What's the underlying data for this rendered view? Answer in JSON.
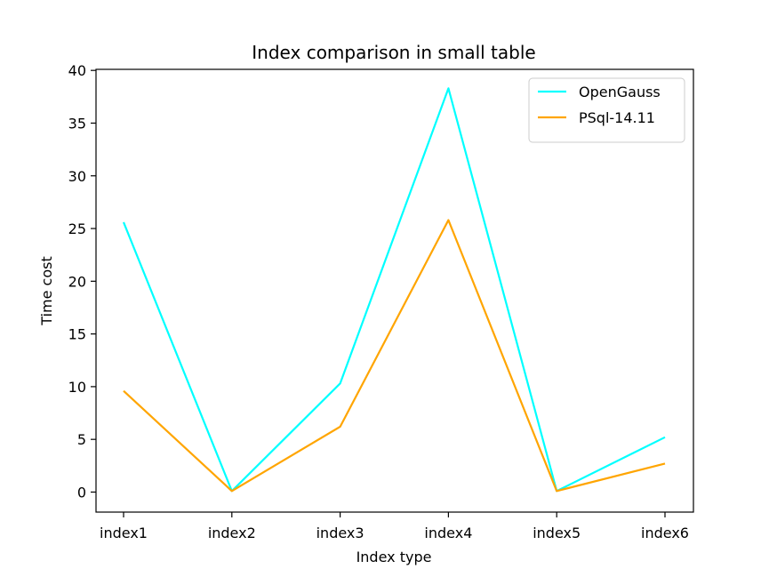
{
  "chart_data": {
    "type": "line",
    "title": "Index comparison in small table",
    "xlabel": "Index type",
    "ylabel": "Time cost",
    "categories": [
      "index1",
      "index2",
      "index3",
      "index4",
      "index5",
      "index6"
    ],
    "ylim": [
      -1.9,
      40.1
    ],
    "yticks": [
      0,
      5,
      10,
      15,
      20,
      25,
      30,
      35,
      40
    ],
    "grid": false,
    "legend_position": "top-right",
    "series": [
      {
        "name": "OpenGauss",
        "color": "#00ffff",
        "values": [
          25.6,
          0.1,
          10.3,
          38.3,
          0.1,
          5.2
        ]
      },
      {
        "name": "PSql-14.11",
        "color": "#ffa500",
        "values": [
          9.6,
          0.1,
          6.2,
          25.8,
          0.1,
          2.7
        ]
      }
    ]
  }
}
